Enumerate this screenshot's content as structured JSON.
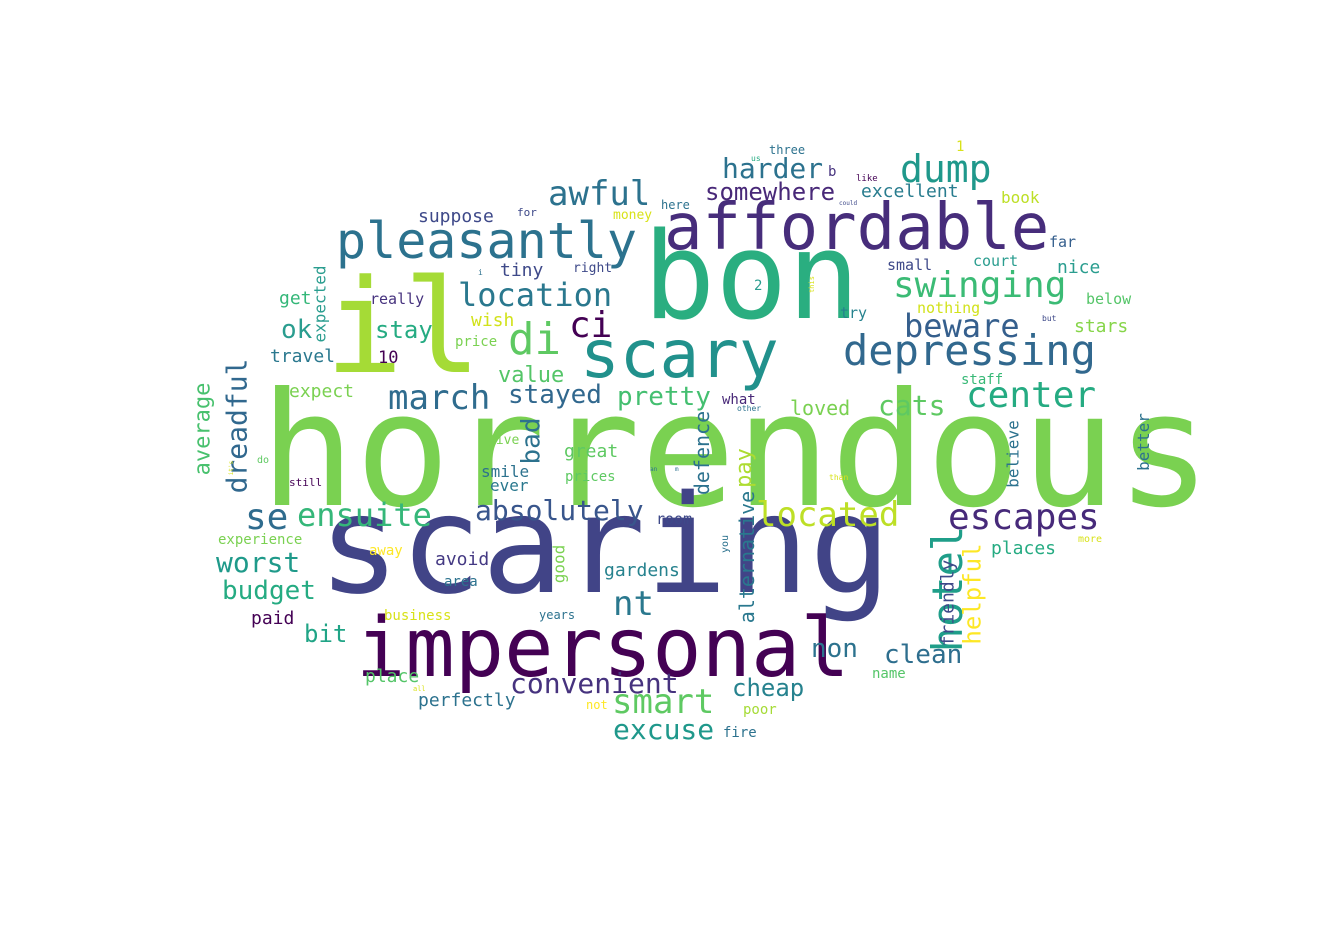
{
  "words": [
    {
      "text": "horrendous",
      "color": "#7ad151"
    },
    {
      "text": "scaring",
      "color": "#414487"
    },
    {
      "text": "bon",
      "color": "#2aae80"
    },
    {
      "text": "il",
      "color": "#a5db36"
    },
    {
      "text": "impersonal",
      "color": "#440154"
    },
    {
      "text": "affordable",
      "color": "#472d7b"
    },
    {
      "text": "scary",
      "color": "#21918c"
    },
    {
      "text": "pleasantly",
      "color": "#2c728e"
    },
    {
      "text": "depressing",
      "color": "#31688e"
    },
    {
      "text": "awful",
      "color": "#2c728e"
    },
    {
      "text": "dump",
      "color": "#1f988b"
    },
    {
      "text": "swinging",
      "color": "#3bbb75"
    },
    {
      "text": "di",
      "color": "#5ec962"
    },
    {
      "text": "location",
      "color": "#2a788e"
    },
    {
      "text": "ci",
      "color": "#440154"
    },
    {
      "text": "beware",
      "color": "#355f8d"
    },
    {
      "text": "center",
      "color": "#25ab82"
    },
    {
      "text": "march",
      "color": "#2f6c8e"
    },
    {
      "text": "smart",
      "color": "#5ec962"
    },
    {
      "text": "escapes",
      "color": "#472a7a"
    },
    {
      "text": "hotel",
      "color": "#1f9e89"
    },
    {
      "text": "located",
      "color": "#bddf26"
    },
    {
      "text": "ensuite",
      "color": "#35b779"
    },
    {
      "text": "se",
      "color": "#2f6c8e"
    },
    {
      "text": "harder",
      "color": "#2c728e"
    },
    {
      "text": "somewhere",
      "color": "#482878"
    },
    {
      "text": "cats",
      "color": "#5ec962"
    },
    {
      "text": "absolutely",
      "color": "#39568c"
    },
    {
      "text": "convenient",
      "color": "#46327e"
    },
    {
      "text": "excuse",
      "color": "#1f988b"
    },
    {
      "text": "nt",
      "color": "#2a788e"
    },
    {
      "text": "worst",
      "color": "#1f9a8a"
    },
    {
      "text": "budget",
      "color": "#25ab82"
    },
    {
      "text": "stayed",
      "color": "#31688e"
    },
    {
      "text": "pretty",
      "color": "#44bf70"
    },
    {
      "text": "dreadful",
      "color": "#31688e"
    },
    {
      "text": "clean",
      "color": "#2e6e8e"
    },
    {
      "text": "non",
      "color": "#2c728e"
    },
    {
      "text": "cheap",
      "color": "#26828e"
    },
    {
      "text": "helpful",
      "color": "#fde725"
    },
    {
      "text": "average",
      "color": "#48c16e"
    },
    {
      "text": "bit",
      "color": "#20a486"
    },
    {
      "text": "bad",
      "color": "#2c728e"
    },
    {
      "text": "ok",
      "color": "#2a9d8f"
    },
    {
      "text": "stay",
      "color": "#25ab82"
    },
    {
      "text": "value",
      "color": "#54c568"
    },
    {
      "text": "pay",
      "color": "#addc30"
    },
    {
      "text": "defence",
      "color": "#2c728e"
    },
    {
      "text": "alternative",
      "color": "#2a788e"
    },
    {
      "text": "friendly",
      "color": "#3e4989"
    },
    {
      "text": "excellent",
      "color": "#287c8e"
    },
    {
      "text": "expected",
      "color": "#2a9d8f"
    },
    {
      "text": "loved",
      "color": "#7ad151"
    },
    {
      "text": "places",
      "color": "#25ab82"
    },
    {
      "text": "stars",
      "color": "#86d549"
    },
    {
      "text": "nice",
      "color": "#2a9d8f"
    },
    {
      "text": "suppose",
      "color": "#3e4989"
    },
    {
      "text": "tiny",
      "color": "#3e4989"
    },
    {
      "text": "travel",
      "color": "#2a788e"
    },
    {
      "text": "get",
      "color": "#35b779"
    },
    {
      "text": "expect",
      "color": "#7ad151"
    },
    {
      "text": "book",
      "color": "#bddf26"
    },
    {
      "text": "wish",
      "color": "#d2e21b"
    },
    {
      "text": "good",
      "color": "#7ad151"
    },
    {
      "text": "avoid",
      "color": "#443983"
    },
    {
      "text": "gardens",
      "color": "#26828e"
    },
    {
      "text": "better",
      "color": "#2c728e"
    },
    {
      "text": "perfectly",
      "color": "#2c728e"
    },
    {
      "text": "place",
      "color": "#54c568"
    },
    {
      "text": "believe",
      "color": "#2c728e"
    },
    {
      "text": "great",
      "color": "#5ec962"
    },
    {
      "text": "smile",
      "color": "#2c728e"
    },
    {
      "text": "ever",
      "color": "#2a788e"
    },
    {
      "text": "paid",
      "color": "#440154"
    },
    {
      "text": "room",
      "color": "#3e4989"
    },
    {
      "text": "court",
      "color": "#2a9d8f"
    },
    {
      "text": "small",
      "color": "#3e4989"
    },
    {
      "text": "far",
      "color": "#355f8d"
    },
    {
      "text": "try",
      "color": "#26828e"
    },
    {
      "text": "really",
      "color": "#46327e"
    },
    {
      "text": "below",
      "color": "#54c568"
    },
    {
      "text": "nothing",
      "color": "#d2e21b"
    },
    {
      "text": "staff",
      "color": "#38b977"
    },
    {
      "text": "10",
      "color": "#440154"
    },
    {
      "text": "experience",
      "color": "#7ad151"
    },
    {
      "text": "business",
      "color": "#d8e219"
    },
    {
      "text": "poor",
      "color": "#a5db36"
    },
    {
      "text": "fire",
      "color": "#2c728e"
    },
    {
      "text": "name",
      "color": "#54c568"
    },
    {
      "text": "area",
      "color": "#2c728e"
    },
    {
      "text": "away",
      "color": "#fde725"
    },
    {
      "text": "right",
      "color": "#3e4989"
    },
    {
      "text": "price",
      "color": "#7ad151"
    },
    {
      "text": "money",
      "color": "#d8e219"
    },
    {
      "text": "three",
      "color": "#2c728e"
    },
    {
      "text": "here",
      "color": "#2c728e"
    },
    {
      "text": "what",
      "color": "#482878"
    },
    {
      "text": "years",
      "color": "#2c728e"
    },
    {
      "text": "give",
      "color": "#7ad151"
    },
    {
      "text": "prices",
      "color": "#5ec962"
    },
    {
      "text": "b",
      "color": "#46327e"
    },
    {
      "text": "1",
      "color": "#d8e219"
    },
    {
      "text": "2",
      "color": "#2a9d8f"
    },
    {
      "text": "for",
      "color": "#3e4989"
    },
    {
      "text": "like",
      "color": "#440154"
    },
    {
      "text": "still",
      "color": "#440154"
    },
    {
      "text": "you",
      "color": "#2c728e"
    },
    {
      "text": "not",
      "color": "#fde725"
    },
    {
      "text": "more",
      "color": "#d8e219"
    },
    {
      "text": "other",
      "color": "#2c728e"
    },
    {
      "text": "do",
      "color": "#5ec962"
    },
    {
      "text": "us",
      "color": "#25ab82"
    },
    {
      "text": "could",
      "color": "#3e4989"
    },
    {
      "text": "this",
      "color": "#d8e219"
    },
    {
      "text": "but",
      "color": "#3e4989"
    },
    {
      "text": "i",
      "color": "#2c728e"
    },
    {
      "text": "an",
      "color": "#2c728e"
    },
    {
      "text": "m",
      "color": "#2c728e"
    },
    {
      "text": "than",
      "color": "#d8e219"
    },
    {
      "text": "all",
      "color": "#d8e219"
    },
    {
      "text": "it's",
      "color": "#d8e219"
    }
  ]
}
